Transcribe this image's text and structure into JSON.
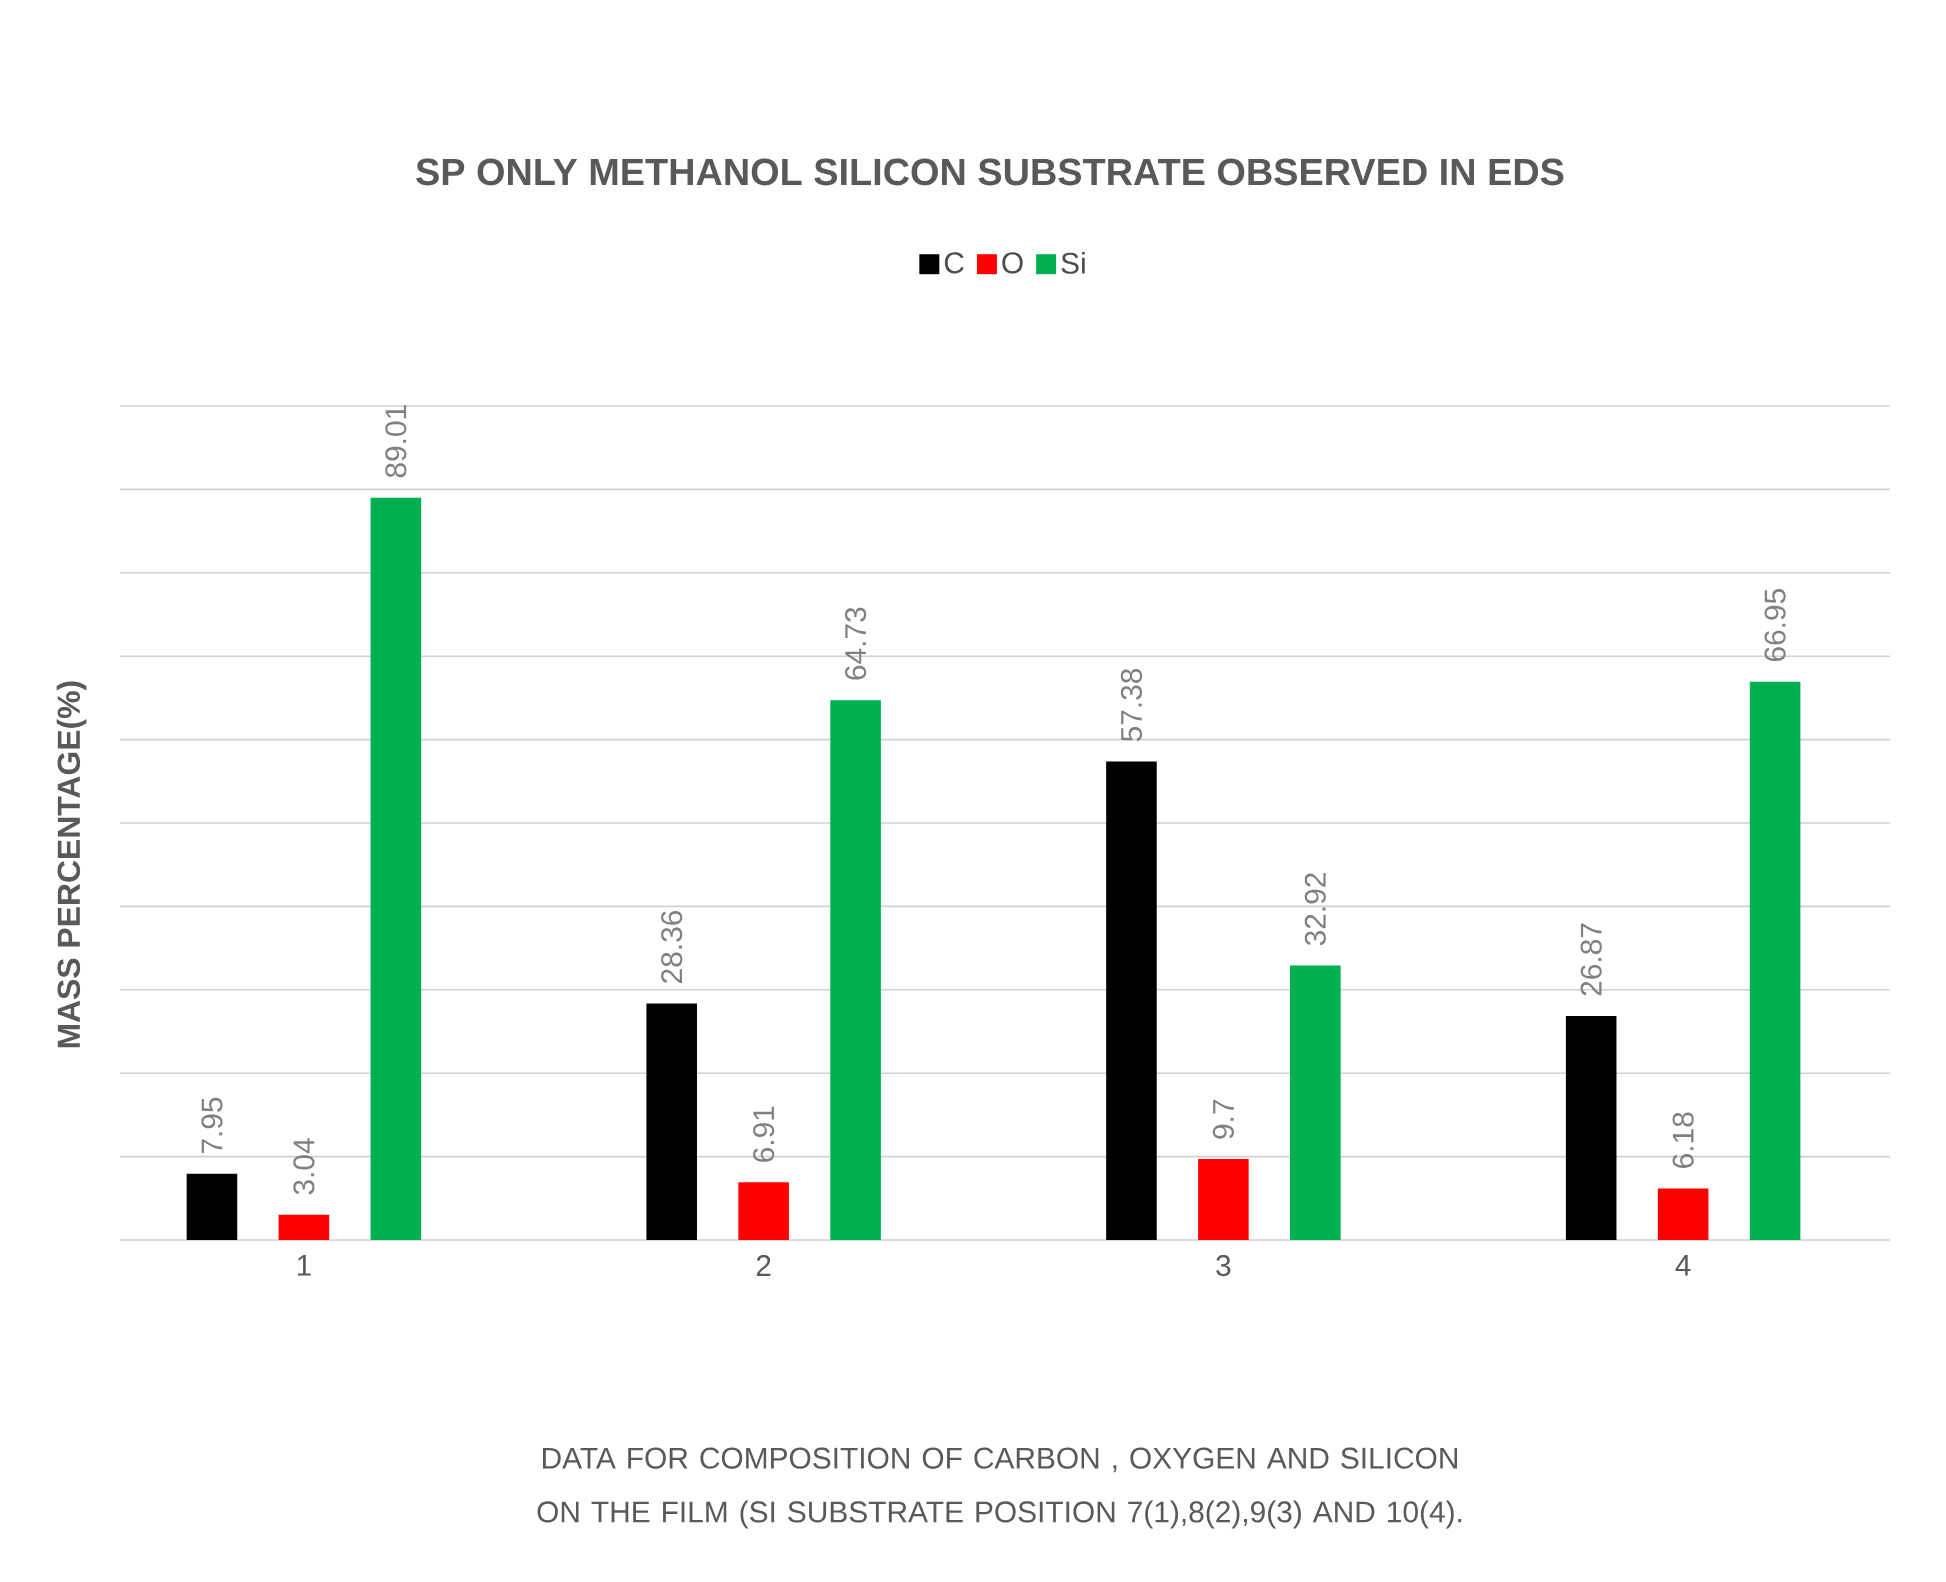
{
  "chart_data": {
    "type": "bar",
    "title": "SP ONLY METHANOL SILICON SUBSTRATE OBSERVED IN EDS",
    "ylabel": "MASS PERCENTAGE(%)",
    "annotations": [
      "DATA FOR COMPOSITION OF  CARBON , OXYGEN AND  SILICON ON THE FILM (SI SUBSTRATE POSITION 7(1),8(2),9(3) AND 10(4)."
    ],
    "categories": [
      "1",
      "2",
      "3",
      "4"
    ],
    "series": [
      {
        "name": "C",
        "color": "#000000",
        "values": [
          7.95,
          28.36,
          57.38,
          26.87
        ]
      },
      {
        "name": "O",
        "color": "#ff0000",
        "values": [
          3.04,
          6.91,
          9.7,
          6.18
        ]
      },
      {
        "name": "Si",
        "color": "#00b050",
        "values": [
          89.01,
          64.73,
          32.92,
          66.95
        ]
      }
    ],
    "ylim": [
      0,
      100
    ],
    "yticks": [
      {
        "value": 0,
        "label": null
      },
      {
        "value": 10,
        "label": null
      },
      {
        "value": 20,
        "label": null
      },
      {
        "value": 30,
        "label": null
      },
      {
        "value": 40,
        "label": null
      },
      {
        "value": 50,
        "label": null
      },
      {
        "value": 60,
        "label": null
      },
      {
        "value": 70,
        "label": null
      },
      {
        "value": 80,
        "label": null
      },
      {
        "value": 90,
        "label": null
      },
      {
        "value": 100,
        "label": null
      }
    ],
    "tick_labels": "x",
    "grid": "y",
    "legend": "top",
    "data_labels": true
  }
}
